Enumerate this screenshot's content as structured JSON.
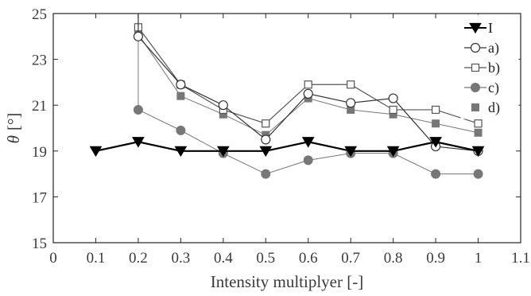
{
  "chart_data": {
    "type": "line",
    "xlabel": "Intensity multiplyer [-]",
    "ylabel_symbol": "θ",
    "ylabel_unit": "[°]",
    "xlim": [
      0,
      1.1
    ],
    "ylim": [
      15,
      25
    ],
    "xticks": [
      "0",
      "0.1",
      "0.2",
      "0.3",
      "0.4",
      "0.5",
      "0.6",
      "0.7",
      "0.8",
      "0.9",
      "1",
      "1.1"
    ],
    "yticks": [
      "15",
      "17",
      "19",
      "21",
      "23",
      "25"
    ],
    "grid": false,
    "legend_position": "top-right",
    "series": [
      {
        "name": "I",
        "marker": "triangle-down",
        "color": "#000000",
        "x": [
          0.1,
          0.2,
          0.3,
          0.4,
          0.5,
          0.6,
          0.7,
          0.8,
          0.9,
          1.0
        ],
        "y": [
          19.0,
          19.4,
          19.0,
          19.0,
          19.0,
          19.4,
          19.0,
          19.0,
          19.4,
          19.0
        ]
      },
      {
        "name": "a)",
        "marker": "circle-open",
        "color": "#333333",
        "x": [
          0.2,
          0.3,
          0.4,
          0.5,
          0.6,
          0.7,
          0.8,
          0.9,
          1.0
        ],
        "y": [
          24.0,
          21.9,
          21.0,
          19.5,
          21.5,
          21.1,
          21.3,
          19.2,
          19.0
        ],
        "leading_vertical_from_y": 25.0
      },
      {
        "name": "b)",
        "marker": "square-open",
        "color": "#555555",
        "x": [
          0.2,
          0.3,
          0.4,
          0.5,
          0.6,
          0.7,
          0.8,
          0.9,
          1.0
        ],
        "y": [
          24.4,
          21.9,
          20.8,
          20.2,
          21.9,
          21.9,
          20.8,
          20.8,
          20.2
        ]
      },
      {
        "name": "c)",
        "marker": "circle-filled",
        "color": "#777777",
        "x": [
          0.2,
          0.3,
          0.4,
          0.5,
          0.6,
          0.7,
          0.8,
          0.9,
          1.0
        ],
        "y": [
          20.8,
          19.9,
          18.9,
          18.0,
          18.6,
          18.9,
          18.9,
          18.0,
          18.0
        ],
        "leading_vertical_from_y": 24.1
      },
      {
        "name": "d)",
        "marker": "square-filled",
        "color": "#777777",
        "x": [
          0.2,
          0.3,
          0.4,
          0.5,
          0.6,
          0.7,
          0.8,
          0.9,
          1.0
        ],
        "y": [
          24.1,
          21.4,
          20.6,
          19.7,
          21.3,
          20.8,
          20.6,
          20.2,
          19.8
        ]
      }
    ]
  }
}
